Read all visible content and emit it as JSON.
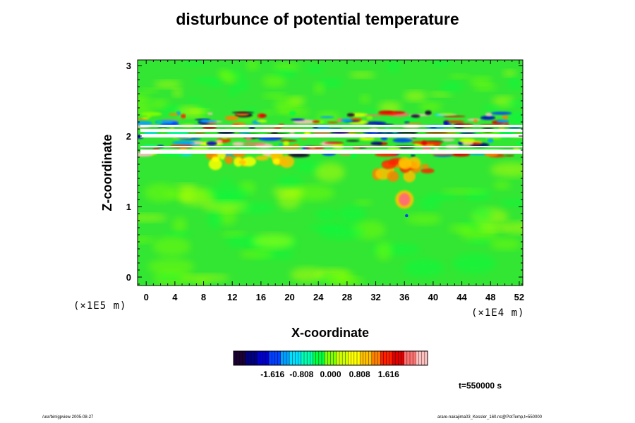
{
  "chart_data": {
    "type": "heatmap",
    "title": "disturbunce of potential temperature",
    "xlabel": "X-coordinate",
    "ylabel": "Z-coordinate",
    "x_scale_label": "(×1E4 m)",
    "y_scale_label": "(×1E5 m)",
    "x_ticks": [
      0,
      4,
      8,
      12,
      16,
      20,
      24,
      28,
      32,
      36,
      40,
      44,
      48,
      52
    ],
    "y_ticks": [
      0,
      1,
      2,
      3
    ],
    "xlim": [
      -1.2,
      52.5
    ],
    "ylim": [
      -0.12,
      3.08
    ],
    "colorbar": {
      "ticks": [
        -1.616,
        -0.808,
        0.0,
        0.808,
        1.616
      ],
      "tick_labels": [
        "-1.616",
        "-0.808",
        "0.000",
        "0.808",
        "1.616"
      ],
      "range": [
        -2.7,
        2.7
      ],
      "colors": [
        "#1a0033",
        "#000080",
        "#0000cd",
        "#0040ff",
        "#00a0ff",
        "#00e0ff",
        "#00ffb0",
        "#00ff40",
        "#80ff00",
        "#d0ff00",
        "#ffff00",
        "#ffc000",
        "#ff8000",
        "#ff2000",
        "#e00000",
        "#ff7070",
        "#ffc0c0"
      ]
    },
    "background_color": "#33e633",
    "features": [
      {
        "kind": "white_band",
        "z": [
          1.75,
          1.81
        ]
      },
      {
        "kind": "white_band",
        "z": [
          1.84,
          1.86
        ]
      },
      {
        "kind": "white_band",
        "z": [
          1.98,
          2.03
        ]
      },
      {
        "kind": "white_band",
        "z": [
          2.06,
          2.1
        ]
      },
      {
        "kind": "white_band",
        "z": [
          2.13,
          2.16
        ]
      },
      {
        "kind": "hot_blob",
        "x": 36,
        "z": 1.1,
        "value": 2.3
      },
      {
        "kind": "blue_dot",
        "x": 36.3,
        "z": 0.87,
        "value": -1.6
      },
      {
        "kind": "warm_region",
        "x": [
          32,
          40
        ],
        "z": [
          1.4,
          1.75
        ],
        "value": 1.2
      },
      {
        "kind": "warm_region",
        "x": [
          9,
          20
        ],
        "z": [
          1.6,
          1.75
        ],
        "value": 0.9
      }
    ]
  },
  "time_label": "t=550000 s",
  "footer_left": "/usr/bin/gpview 2005-08-27",
  "footer_right": "arare-nakajima03_Kessler_160.nc@PotTemp,t=550000"
}
